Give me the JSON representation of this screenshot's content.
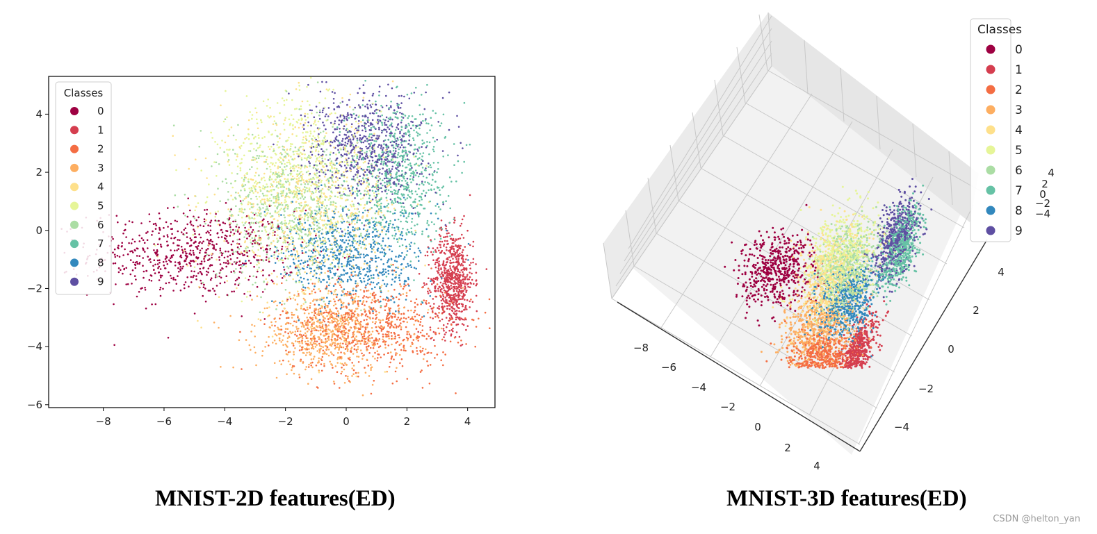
{
  "chart_data": [
    {
      "type": "scatter",
      "title": "",
      "xlabel": "",
      "ylabel": "",
      "xlim": [
        -9.8,
        4.9
      ],
      "ylim": [
        -6.1,
        5.3
      ],
      "xticks": [
        -8,
        -6,
        -4,
        -2,
        0,
        2,
        4
      ],
      "yticks": [
        -6,
        -4,
        -2,
        0,
        2,
        4
      ],
      "xtick_labels": [
        "−8",
        "−6",
        "−4",
        "−2",
        "0",
        "2",
        "4"
      ],
      "ytick_labels": [
        "−6",
        "−4",
        "−2",
        "0",
        "2",
        "4"
      ],
      "grid": false,
      "legend_title": "Classes",
      "legend_position": "top-left",
      "caption": "MNIST-2D features(ED)",
      "series": [
        {
          "name": "0",
          "color": "#9e0142",
          "center": [
            -5.0,
            -0.8
          ],
          "spread": [
            1.7,
            0.75
          ],
          "count": 700
        },
        {
          "name": "1",
          "color": "#d53e4f",
          "center": [
            3.5,
            -1.7
          ],
          "spread": [
            0.35,
            0.85
          ],
          "count": 700
        },
        {
          "name": "2",
          "color": "#f46d43",
          "center": [
            0.7,
            -3.3
          ],
          "spread": [
            1.4,
            0.8
          ],
          "count": 700
        },
        {
          "name": "3",
          "color": "#fdae61",
          "center": [
            -0.5,
            -3.5
          ],
          "spread": [
            1.2,
            0.7
          ],
          "count": 700
        },
        {
          "name": "4",
          "color": "#fee08b",
          "center": [
            -1.2,
            0.6
          ],
          "spread": [
            1.5,
            1.6
          ],
          "count": 700
        },
        {
          "name": "5",
          "color": "#e6f598",
          "center": [
            -1.6,
            1.7
          ],
          "spread": [
            1.3,
            1.5
          ],
          "count": 700
        },
        {
          "name": "6",
          "color": "#abdda4",
          "center": [
            -1.8,
            0.8
          ],
          "spread": [
            1.2,
            1.3
          ],
          "count": 700
        },
        {
          "name": "7",
          "color": "#66c2a5",
          "center": [
            1.7,
            2.0
          ],
          "spread": [
            0.8,
            1.3
          ],
          "count": 700
        },
        {
          "name": "8",
          "color": "#3288bd",
          "center": [
            0.2,
            -0.9
          ],
          "spread": [
            1.2,
            0.85
          ],
          "count": 700
        },
        {
          "name": "9",
          "color": "#5e4fa2",
          "center": [
            0.7,
            2.9
          ],
          "spread": [
            0.95,
            0.95
          ],
          "count": 700
        }
      ]
    },
    {
      "type": "scatter",
      "title": "",
      "xlabel": "",
      "ylabel": "",
      "zlabel": "",
      "xlim": [
        -9,
        5
      ],
      "ylim": [
        -5,
        5
      ],
      "zlim": [
        -5,
        5
      ],
      "xtick_labels": [
        "−8",
        "−6",
        "−4",
        "−2",
        "0",
        "2",
        "4"
      ],
      "ytick_labels": [
        "−4",
        "−2",
        "0",
        "2",
        "4"
      ],
      "ztick_labels": [
        "−4",
        "−2",
        "0",
        "2",
        "4"
      ],
      "grid": true,
      "legend_title": "Classes",
      "legend_position": "top-right",
      "caption": "MNIST-3D features(ED)",
      "series": [
        {
          "name": "0",
          "color": "#9e0142",
          "center": [
            -5.5,
            0.5,
            0
          ],
          "spread": [
            1.3,
            0.8,
            0.6
          ],
          "count": 520
        },
        {
          "name": "1",
          "color": "#d53e4f",
          "center": [
            2.5,
            -2.5,
            0
          ],
          "spread": [
            0.5,
            0.9,
            0.4
          ],
          "count": 520
        },
        {
          "name": "2",
          "color": "#f46d43",
          "center": [
            0.0,
            -3.0,
            0
          ],
          "spread": [
            1.2,
            0.6,
            0.5
          ],
          "count": 520
        },
        {
          "name": "3",
          "color": "#fdae61",
          "center": [
            -1.0,
            -1.8,
            0
          ],
          "spread": [
            1.3,
            0.8,
            0.5
          ],
          "count": 520
        },
        {
          "name": "4",
          "color": "#fee08b",
          "center": [
            -1.5,
            0.5,
            0
          ],
          "spread": [
            1.3,
            1.0,
            0.7
          ],
          "count": 520
        },
        {
          "name": "5",
          "color": "#e6f598",
          "center": [
            -1.0,
            1.5,
            0
          ],
          "spread": [
            1.2,
            1.0,
            0.7
          ],
          "count": 520
        },
        {
          "name": "6",
          "color": "#abdda4",
          "center": [
            -0.5,
            1.0,
            0
          ],
          "spread": [
            1.1,
            1.0,
            0.6
          ],
          "count": 520
        },
        {
          "name": "7",
          "color": "#66c2a5",
          "center": [
            3.0,
            2.2,
            0
          ],
          "spread": [
            0.6,
            1.0,
            0.5
          ],
          "count": 520
        },
        {
          "name": "8",
          "color": "#3288bd",
          "center": [
            0.5,
            -0.5,
            0
          ],
          "spread": [
            1.0,
            0.8,
            0.5
          ],
          "count": 520
        },
        {
          "name": "9",
          "color": "#5e4fa2",
          "center": [
            2.5,
            2.5,
            0.5
          ],
          "spread": [
            0.7,
            0.9,
            0.6
          ],
          "count": 520
        }
      ]
    }
  ],
  "watermark": "CSDN @helton_yan"
}
